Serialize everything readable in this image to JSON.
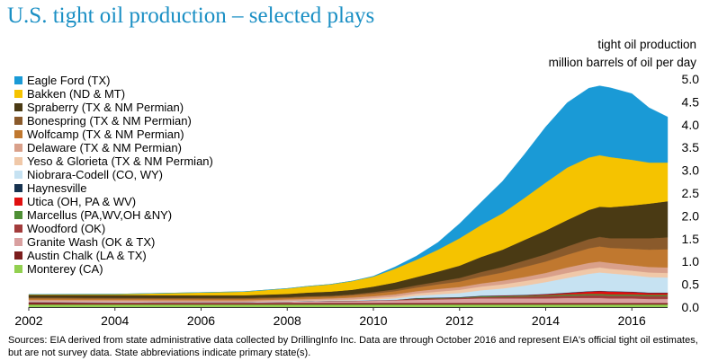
{
  "chart_data": {
    "type": "area",
    "stacked": true,
    "title": "U.S. tight oil production – selected plays",
    "ylabel_line1": "tight oil production",
    "ylabel_line2": "million barrels of oil per day",
    "xlabel": "",
    "ylim": [
      0,
      5
    ],
    "xlim": [
      2002,
      2016.83
    ],
    "y_ticks": [
      "5.0",
      "4.5",
      "4.0",
      "3.5",
      "3.0",
      "2.5",
      "2.0",
      "1.5",
      "1.0",
      "0.5",
      "0.0"
    ],
    "x_ticks": [
      "2002",
      "2004",
      "2006",
      "2008",
      "2010",
      "2012",
      "2014",
      "2016"
    ],
    "y_axis_side": "right",
    "grid": false,
    "legend_position": "left",
    "x": [
      2002,
      2004,
      2006,
      2007,
      2008,
      2008.5,
      2009,
      2009.5,
      2010,
      2010.5,
      2011,
      2011.5,
      2012,
      2012.5,
      2013,
      2013.5,
      2014,
      2014.5,
      2015,
      2015.25,
      2015.5,
      2016,
      2016.4,
      2016.83
    ],
    "series": [
      {
        "name": "Monterey (CA)",
        "color": "#92d050",
        "values": [
          0.06,
          0.06,
          0.06,
          0.06,
          0.06,
          0.06,
          0.06,
          0.06,
          0.06,
          0.06,
          0.06,
          0.06,
          0.06,
          0.06,
          0.06,
          0.06,
          0.06,
          0.06,
          0.06,
          0.06,
          0.06,
          0.06,
          0.06,
          0.06
        ]
      },
      {
        "name": "Austin Chalk (LA & TX)",
        "color": "#7b1d1d",
        "values": [
          0.04,
          0.035,
          0.03,
          0.03,
          0.03,
          0.03,
          0.03,
          0.03,
          0.03,
          0.03,
          0.03,
          0.03,
          0.03,
          0.03,
          0.03,
          0.03,
          0.03,
          0.03,
          0.03,
          0.03,
          0.03,
          0.03,
          0.03,
          0.03
        ]
      },
      {
        "name": "Granite Wash (OK & TX)",
        "color": "#d9a0a0",
        "values": [
          0.02,
          0.02,
          0.02,
          0.02,
          0.03,
          0.04,
          0.04,
          0.04,
          0.05,
          0.06,
          0.07,
          0.08,
          0.09,
          0.1,
          0.1,
          0.1,
          0.1,
          0.11,
          0.11,
          0.11,
          0.1,
          0.1,
          0.09,
          0.09
        ]
      },
      {
        "name": "Woodford (OK)",
        "color": "#a23b3b",
        "values": [
          0.0,
          0.0,
          0.0,
          0.0,
          0.0,
          0.0,
          0.01,
          0.01,
          0.01,
          0.01,
          0.02,
          0.02,
          0.02,
          0.03,
          0.03,
          0.04,
          0.05,
          0.05,
          0.06,
          0.06,
          0.06,
          0.06,
          0.06,
          0.06
        ]
      },
      {
        "name": "Marcellus (PA,WV,OH &NY)",
        "color": "#4e8f35",
        "values": [
          0.0,
          0.0,
          0.0,
          0.0,
          0.0,
          0.0,
          0.0,
          0.0,
          0.0,
          0.0,
          0.01,
          0.01,
          0.01,
          0.02,
          0.02,
          0.02,
          0.02,
          0.03,
          0.03,
          0.03,
          0.03,
          0.03,
          0.03,
          0.03
        ]
      },
      {
        "name": "Utica (OH, PA & WV)",
        "color": "#e01010",
        "values": [
          0.0,
          0.0,
          0.0,
          0.0,
          0.0,
          0.0,
          0.0,
          0.0,
          0.0,
          0.0,
          0.0,
          0.0,
          0.0,
          0.0,
          0.01,
          0.01,
          0.02,
          0.03,
          0.05,
          0.06,
          0.06,
          0.05,
          0.04,
          0.04
        ]
      },
      {
        "name": "Haynesville",
        "color": "#16324f",
        "values": [
          0.0,
          0.0,
          0.0,
          0.0,
          0.0,
          0.0,
          0.0,
          0.0,
          0.0,
          0.0,
          0.01,
          0.01,
          0.01,
          0.01,
          0.01,
          0.01,
          0.01,
          0.01,
          0.01,
          0.01,
          0.01,
          0.01,
          0.01,
          0.01
        ]
      },
      {
        "name": "Niobrara-Codell (CO, WY)",
        "color": "#c6e2f2",
        "values": [
          0.01,
          0.01,
          0.01,
          0.01,
          0.01,
          0.01,
          0.01,
          0.01,
          0.02,
          0.03,
          0.05,
          0.07,
          0.09,
          0.12,
          0.15,
          0.2,
          0.26,
          0.32,
          0.38,
          0.4,
          0.39,
          0.36,
          0.34,
          0.33
        ]
      },
      {
        "name": "Yeso & Glorieta (TX & NM Permian)",
        "color": "#f0c8a8",
        "values": [
          0.0,
          0.0,
          0.0,
          0.0,
          0.01,
          0.01,
          0.01,
          0.02,
          0.03,
          0.04,
          0.05,
          0.06,
          0.07,
          0.08,
          0.09,
          0.1,
          0.1,
          0.11,
          0.11,
          0.11,
          0.1,
          0.1,
          0.1,
          0.1
        ]
      },
      {
        "name": "Delaware (TX & NM Permian)",
        "color": "#d9a08a",
        "values": [
          0.03,
          0.03,
          0.03,
          0.03,
          0.03,
          0.03,
          0.03,
          0.04,
          0.04,
          0.05,
          0.05,
          0.06,
          0.06,
          0.07,
          0.08,
          0.09,
          0.1,
          0.12,
          0.13,
          0.13,
          0.13,
          0.12,
          0.12,
          0.12
        ]
      },
      {
        "name": "Wolfcamp (TX & NM Permian)",
        "color": "#c0782f",
        "values": [
          0.03,
          0.03,
          0.03,
          0.03,
          0.03,
          0.04,
          0.04,
          0.05,
          0.06,
          0.07,
          0.08,
          0.1,
          0.12,
          0.15,
          0.18,
          0.22,
          0.25,
          0.28,
          0.32,
          0.33,
          0.33,
          0.36,
          0.38,
          0.4
        ]
      },
      {
        "name": "Bonespring (TX & NM Permian)",
        "color": "#8a5a2b",
        "values": [
          0.02,
          0.02,
          0.02,
          0.02,
          0.02,
          0.02,
          0.02,
          0.02,
          0.03,
          0.04,
          0.05,
          0.06,
          0.08,
          0.1,
          0.12,
          0.14,
          0.16,
          0.18,
          0.2,
          0.21,
          0.21,
          0.23,
          0.25,
          0.26
        ]
      },
      {
        "name": "Spraberry (TX & NM Permian)",
        "color": "#4a3a14",
        "values": [
          0.06,
          0.06,
          0.06,
          0.06,
          0.07,
          0.08,
          0.09,
          0.1,
          0.12,
          0.15,
          0.18,
          0.22,
          0.27,
          0.33,
          0.38,
          0.45,
          0.52,
          0.58,
          0.64,
          0.66,
          0.68,
          0.72,
          0.76,
          0.79
        ]
      },
      {
        "name": "Bakken (ND & MT)",
        "color": "#f5c300",
        "values": [
          0.01,
          0.02,
          0.06,
          0.08,
          0.12,
          0.14,
          0.16,
          0.19,
          0.22,
          0.3,
          0.38,
          0.48,
          0.6,
          0.7,
          0.8,
          0.92,
          1.05,
          1.15,
          1.15,
          1.13,
          1.1,
          1.0,
          0.9,
          0.85
        ]
      },
      {
        "name": "Eagle Ford (TX)",
        "color": "#1a9ad6",
        "values": [
          0.0,
          0.0,
          0.0,
          0.0,
          0.0,
          0.0,
          0.0,
          0.0,
          0.01,
          0.04,
          0.08,
          0.16,
          0.32,
          0.5,
          0.7,
          0.95,
          1.22,
          1.42,
          1.52,
          1.52,
          1.52,
          1.45,
          1.2,
          1.0
        ]
      }
    ]
  },
  "source_note": "Sources: EIA derived from state administrative data collected by DrillingInfo Inc. Data are through October 2016 and represent EIA's official tight oil estimates, but are not survey data. State abbreviations indicate primary state(s)."
}
